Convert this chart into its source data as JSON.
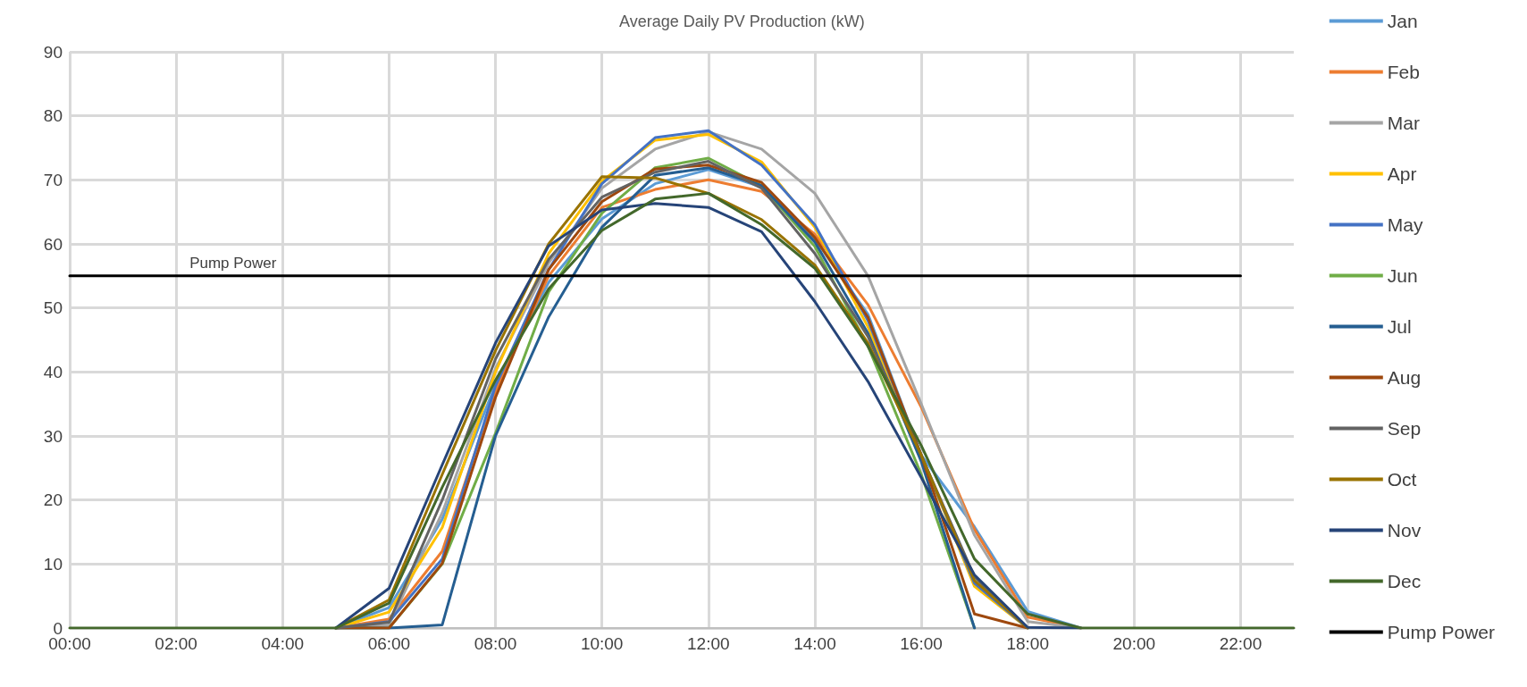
{
  "chart_data": {
    "type": "line",
    "title": "Average Daily PV Production (kW)",
    "categories": [
      "00:00",
      null,
      "02:00",
      null,
      "04:00",
      null,
      "06:00",
      null,
      "08:00",
      null,
      "10:00",
      null,
      "12:00",
      null,
      "14:00",
      null,
      "16:00",
      null,
      "18:00",
      null,
      "20:00",
      null,
      "22:00",
      null
    ],
    "series": [
      {
        "name": "Jan",
        "color": "#5b9bd5",
        "values": [
          null,
          null,
          null,
          null,
          null,
          0,
          3.2,
          17,
          38,
          54,
          63.9,
          69.4,
          71.6,
          68.9,
          60.8,
          49,
          27,
          15.8,
          2.6,
          0,
          null,
          null,
          null,
          null
        ]
      },
      {
        "name": "Feb",
        "color": "#ed7d31",
        "values": [
          null,
          null,
          null,
          null,
          null,
          0,
          1.4,
          12,
          37,
          55,
          65.7,
          68.5,
          70,
          68.2,
          61.5,
          50.5,
          34.5,
          15.4,
          1.7,
          0,
          null,
          null,
          null,
          null
        ]
      },
      {
        "name": "Mar",
        "color": "#a5a5a5",
        "values": [
          null,
          null,
          null,
          null,
          null,
          0,
          0.5,
          18,
          40.5,
          57,
          68.7,
          74.8,
          77.5,
          74.8,
          67.9,
          55,
          35,
          14.5,
          1,
          0,
          null,
          null,
          null,
          null
        ]
      },
      {
        "name": "Apr",
        "color": "#ffc000",
        "values": [
          null,
          null,
          null,
          null,
          null,
          0,
          2.5,
          15.7,
          40,
          58.5,
          69.8,
          76.2,
          77.1,
          72.8,
          62.6,
          47,
          27,
          6.5,
          0,
          null,
          null,
          null,
          null,
          null
        ]
      },
      {
        "name": "May",
        "color": "#4472c4",
        "values": [
          null,
          null,
          null,
          null,
          null,
          0,
          1,
          10.8,
          37.8,
          56,
          69.4,
          76.6,
          77.7,
          72.3,
          63,
          48,
          27,
          7,
          0,
          null,
          null,
          null,
          null,
          null
        ]
      },
      {
        "name": "Jun",
        "color": "#70ad47",
        "values": [
          null,
          null,
          null,
          null,
          null,
          0,
          0,
          10,
          30.4,
          52.5,
          64.8,
          71.9,
          73.4,
          69.1,
          59.6,
          44,
          24,
          0,
          null,
          null,
          null,
          null,
          null,
          null
        ]
      },
      {
        "name": "Jul",
        "color": "#255e91",
        "values": [
          null,
          null,
          null,
          null,
          null,
          0,
          0,
          0.5,
          30,
          48.6,
          62.6,
          70.7,
          71.9,
          69.1,
          60.3,
          46,
          26,
          0,
          null,
          null,
          null,
          null,
          null,
          null
        ]
      },
      {
        "name": "Aug",
        "color": "#9e480e",
        "values": [
          null,
          null,
          null,
          null,
          null,
          0,
          0,
          10.1,
          36,
          56,
          66.6,
          71.7,
          72.3,
          69.6,
          61,
          48.5,
          27,
          2.2,
          0,
          null,
          null,
          null,
          null,
          null
        ]
      },
      {
        "name": "Sep",
        "color": "#636363",
        "values": [
          null,
          null,
          null,
          null,
          null,
          0,
          0.9,
          20,
          42,
          57.6,
          67.3,
          71.2,
          72.9,
          68.7,
          58.5,
          45.5,
          27,
          8,
          0,
          null,
          null,
          null,
          null,
          null
        ]
      },
      {
        "name": "Oct",
        "color": "#997300",
        "values": [
          null,
          null,
          null,
          null,
          null,
          0,
          4.4,
          24,
          43.3,
          60,
          70.5,
          70.3,
          67.9,
          63.8,
          56.7,
          44.5,
          27,
          7.4,
          0,
          null,
          null,
          null,
          null,
          null
        ]
      },
      {
        "name": "Nov",
        "color": "#264478",
        "values": [
          null,
          null,
          null,
          null,
          null,
          0,
          6.2,
          25.5,
          44.5,
          59.7,
          65.3,
          66.3,
          65.7,
          61.9,
          51,
          38.5,
          23.5,
          8.3,
          0.1,
          0,
          null,
          null,
          null,
          null
        ]
      },
      {
        "name": "Dec",
        "color": "#43682b",
        "values": [
          0,
          0,
          0,
          0,
          0,
          0,
          3.9,
          22,
          38.7,
          53,
          62.1,
          67,
          67.9,
          63,
          56.2,
          44,
          28.5,
          10.8,
          2.2,
          0,
          0,
          0,
          0,
          0
        ]
      },
      {
        "name": "Pump Power",
        "color": "#000000",
        "values": [
          55,
          55,
          55,
          55,
          55,
          55,
          55,
          55,
          55,
          55,
          55,
          55,
          55,
          55,
          55,
          55,
          55,
          55,
          55,
          55,
          55,
          55,
          55,
          null
        ]
      }
    ],
    "annotations": [
      {
        "text": "Pump Power",
        "x": "02:00",
        "y": 55
      }
    ],
    "ylim": [
      0,
      90
    ],
    "yticks": [
      0,
      10,
      20,
      30,
      40,
      50,
      60,
      70,
      80,
      90
    ],
    "grid": true,
    "legend": "right",
    "marker": "none",
    "line_style": "solid"
  }
}
